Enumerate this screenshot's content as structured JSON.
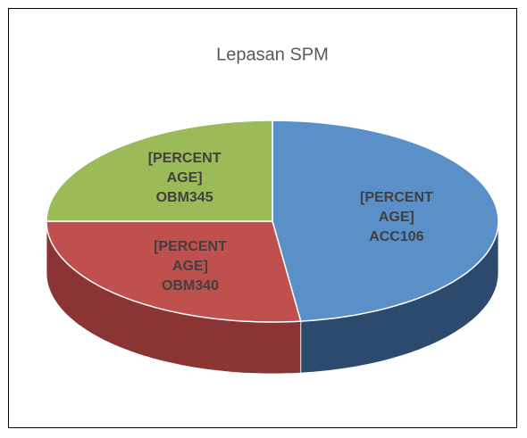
{
  "chart_data": {
    "type": "pie3d",
    "title": "Lepasan SPM",
    "categories": [
      "ACC106",
      "OBM340",
      "OBM345"
    ],
    "values": [
      48,
      27,
      25
    ],
    "colors": [
      "#5b8fc7",
      "#c0504d",
      "#9bbb59"
    ],
    "side_colors": [
      "#2c4a6e",
      "#8a3533",
      "#6e8a3c"
    ],
    "data_label": "[PERCENTAGE]"
  }
}
